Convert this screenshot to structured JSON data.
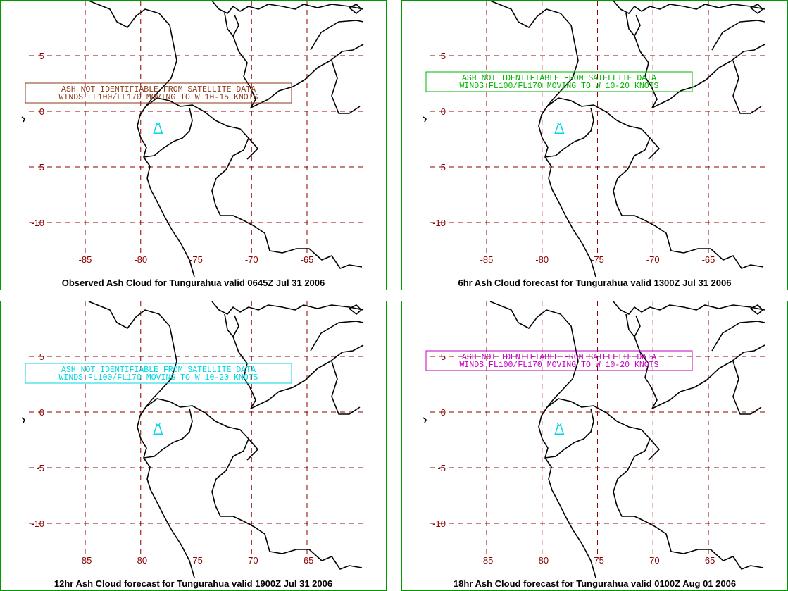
{
  "colors": {
    "panel_border": "#009a00",
    "grid": "#8b0000",
    "coastline": "#000000",
    "volcano": "#00d8e0"
  },
  "map": {
    "lon_ticks": [
      -85,
      -80,
      -75,
      -70,
      -65
    ],
    "lon_labels": [
      "-85",
      "-80",
      "-75",
      "-70",
      "-65"
    ],
    "lat_ticks": [
      5,
      0,
      -5,
      -10
    ],
    "lat_labels": [
      "5",
      "0",
      "-5",
      "-10"
    ],
    "volcano": {
      "name": "Tungurahua",
      "lon": -78.44,
      "lat": -1.47,
      "icon": "volcano-icon"
    }
  },
  "panels": [
    {
      "caption": "Observed Ash Cloud for Tungurahua valid 0645Z Jul 31 2006",
      "advisory_color": "#8b3a1a",
      "advisory_lines": [
        "ASH NOT IDENTIFIABLE FROM SATELLITE DATA",
        "WINDS FL100/FL170 MOVING TO W 10-15 KNOTS"
      ]
    },
    {
      "caption": "6hr Ash Cloud forecast for Tungurahua valid 1300Z Jul 31 2006",
      "advisory_color": "#00b400",
      "advisory_lines": [
        "ASH NOT IDENTIFIABLE FROM SATELLITE DATA",
        "WINDS FL100/FL170 MOVING TO W 10-20 KNOTS"
      ]
    },
    {
      "caption": "12hr Ash Cloud forecast for Tungurahua valid 1900Z Jul 31 2006",
      "advisory_color": "#00d8e0",
      "advisory_lines": [
        "ASH NOT IDENTIFIABLE FROM SATELLITE DATA",
        "WINDS FL100/FL170 MOVING TO W 10-20 KNOTS"
      ]
    },
    {
      "caption": "18hr Ash Cloud forecast for Tungurahua valid 0100Z Aug 01 2006",
      "advisory_color": "#c000c0",
      "advisory_lines": [
        "ASH NOT IDENTIFIABLE FROM SATELLITE DATA",
        "WINDS FL100/FL170 MOVING TO W 10-20 KNOTS"
      ]
    }
  ]
}
